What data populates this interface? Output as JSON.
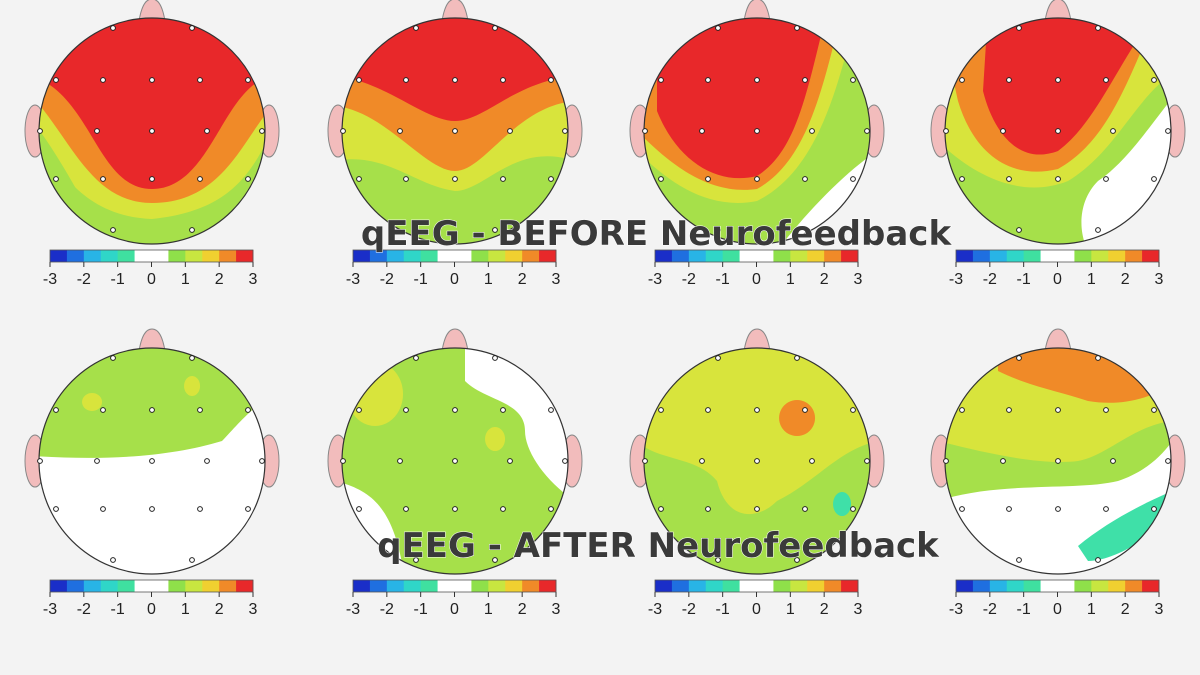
{
  "rows": [
    {
      "caption": "qEEG - BEFORE Neurofeedback"
    },
    {
      "caption": "qEEG - AFTER Neurofeedback"
    }
  ],
  "colorbar": {
    "ticks": [
      -3,
      -2,
      -1,
      0,
      1,
      2,
      3
    ],
    "colors": [
      "#1a2ec8",
      "#1f6fe0",
      "#28b4e6",
      "#2fd6c8",
      "#3fe0a0",
      "#ffffff",
      "#ffffff",
      "#8fe04a",
      "#c8e640",
      "#f0d030",
      "#f08a28",
      "#e8282a"
    ]
  }
}
